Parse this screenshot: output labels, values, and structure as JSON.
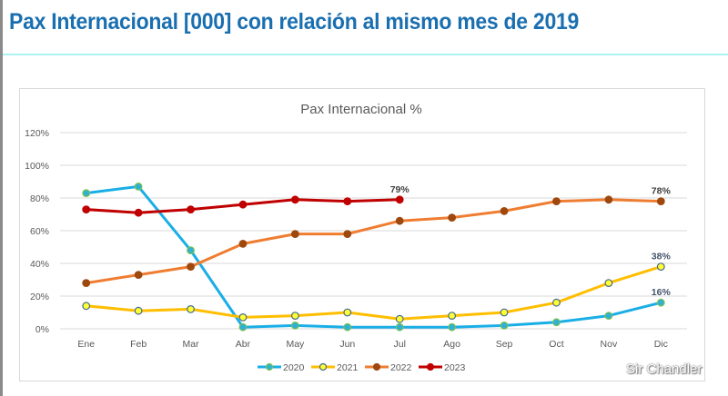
{
  "page": {
    "title": "Pax Internacional [000] con relación al mismo mes de 2019",
    "watermark": "Sir Chandler"
  },
  "chart_data": {
    "type": "line",
    "title": "Pax Internacional %",
    "xlabel": "",
    "ylabel": "",
    "categories": [
      "Ene",
      "Feb",
      "Mar",
      "Abr",
      "May",
      "Jun",
      "Jul",
      "Ago",
      "Sep",
      "Oct",
      "Nov",
      "Dic"
    ],
    "y_ticks": [
      "0%",
      "20%",
      "40%",
      "60%",
      "80%",
      "100%",
      "120%"
    ],
    "y_tick_values": [
      0,
      20,
      40,
      60,
      80,
      100,
      120
    ],
    "ylim": [
      0,
      120
    ],
    "grid": true,
    "legend_position": "bottom",
    "series": [
      {
        "name": "2020",
        "color": "#1aaee6",
        "marker_fill": "#2eb0d8",
        "marker_stroke": "#7fc24a",
        "values": [
          83,
          87,
          48,
          1,
          2,
          1,
          1,
          1,
          2,
          4,
          8,
          16
        ],
        "data_labels": [
          {
            "index": 11,
            "text": "16%"
          }
        ],
        "label_color": "#44546a"
      },
      {
        "name": "2021",
        "color": "#ffbe00",
        "marker_fill": "#ffff33",
        "marker_stroke": "#44688f",
        "values": [
          14,
          11,
          12,
          7,
          8,
          10,
          6,
          8,
          10,
          16,
          28,
          38
        ],
        "data_labels": [
          {
            "index": 11,
            "text": "38%"
          }
        ],
        "label_color": "#44546a"
      },
      {
        "name": "2022",
        "color": "#ef7d31",
        "marker_fill": "#9e480e",
        "marker_stroke": "#9e480e",
        "values": [
          28,
          33,
          38,
          52,
          58,
          58,
          66,
          68,
          72,
          78,
          79,
          78
        ],
        "data_labels": [
          {
            "index": 11,
            "text": "78%"
          }
        ],
        "label_color": "#404040"
      },
      {
        "name": "2023",
        "color": "#c00000",
        "marker_fill": "#c00000",
        "marker_stroke": "#c00000",
        "values": [
          73,
          71,
          73,
          76,
          79,
          78,
          79
        ],
        "data_labels": [
          {
            "index": 6,
            "text": "79%"
          }
        ],
        "label_color": "#404040"
      }
    ]
  }
}
